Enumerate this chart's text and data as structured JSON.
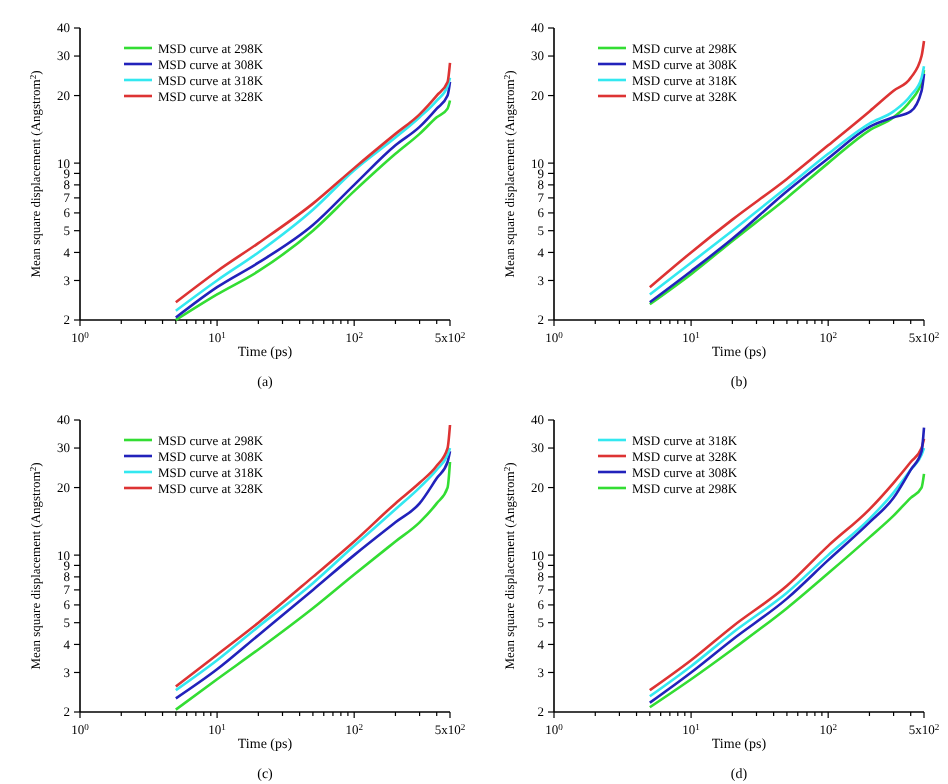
{
  "chart_data": [
    {
      "type": "line",
      "xlabel": "Time (ps)",
      "ylabel": "Mean square displacement (Angstrom$^{2}$)",
      "annotations": [
        "(a)"
      ],
      "log": "xy",
      "grid": false,
      "legend": "top left",
      "marker": "none",
      "line_style": "solid",
      "xlim": [
        1,
        500
      ],
      "ylim": [
        2,
        40
      ],
      "xticks": [
        {
          "value": 1,
          "label": "10$^{0}$"
        },
        {
          "value": 2,
          "label": null
        },
        {
          "value": 3,
          "label": null
        },
        {
          "value": 4,
          "label": null
        },
        {
          "value": 5,
          "label": null
        },
        {
          "value": 6,
          "label": null
        },
        {
          "value": 7,
          "label": null
        },
        {
          "value": 8,
          "label": null
        },
        {
          "value": 9,
          "label": null
        },
        {
          "value": 10,
          "label": "10$^{1}$"
        },
        {
          "value": 20,
          "label": null
        },
        {
          "value": 30,
          "label": null
        },
        {
          "value": 40,
          "label": null
        },
        {
          "value": 50,
          "label": null
        },
        {
          "value": 60,
          "label": null
        },
        {
          "value": 70,
          "label": null
        },
        {
          "value": 80,
          "label": null
        },
        {
          "value": 90,
          "label": null
        },
        {
          "value": 100,
          "label": "10$^{2}$"
        },
        {
          "value": 200,
          "label": null
        },
        {
          "value": 300,
          "label": null
        },
        {
          "value": 400,
          "label": null
        },
        {
          "value": 500,
          "label": "5x10$^{2}$"
        }
      ],
      "yticks": [
        2,
        3,
        4,
        5,
        6,
        7,
        8,
        9,
        10,
        20,
        30,
        40
      ],
      "x": [
        5,
        10,
        20,
        50,
        100,
        200,
        300,
        400,
        480,
        500
      ],
      "series": [
        {
          "name": "MSD curve at 298K",
          "color": "#33dd33",
          "values": [
            2.0,
            2.6,
            3.3,
            5.0,
            7.5,
            11,
            13.5,
            16,
            17.5,
            19
          ]
        },
        {
          "name": "MSD curve at 308K",
          "color": "#2222bb",
          "values": [
            2.05,
            2.8,
            3.6,
            5.3,
            8,
            12,
            14.5,
            17.5,
            20,
            23
          ]
        },
        {
          "name": "MSD curve at 318K",
          "color": "#33e8f0",
          "values": [
            2.2,
            3.0,
            4.0,
            6.2,
            9.3,
            13,
            16,
            19,
            22,
            24
          ]
        },
        {
          "name": "MSD curve at 328K",
          "color": "#dd3333",
          "values": [
            2.4,
            3.3,
            4.4,
            6.6,
            9.5,
            13.5,
            16.5,
            20,
            23,
            28
          ]
        }
      ]
    },
    {
      "type": "line",
      "xlabel": "Time (ps)",
      "ylabel": "Mean square displacement (Angstrom$^{2}$)",
      "annotations": [
        "(b)"
      ],
      "log": "xy",
      "grid": false,
      "legend": "top left",
      "marker": "none",
      "line_style": "solid",
      "xlim": [
        1,
        500
      ],
      "ylim": [
        2,
        40
      ],
      "xticks": [
        {
          "value": 1,
          "label": "10$^{0}$"
        },
        {
          "value": 2,
          "label": null
        },
        {
          "value": 3,
          "label": null
        },
        {
          "value": 4,
          "label": null
        },
        {
          "value": 5,
          "label": null
        },
        {
          "value": 6,
          "label": null
        },
        {
          "value": 7,
          "label": null
        },
        {
          "value": 8,
          "label": null
        },
        {
          "value": 9,
          "label": null
        },
        {
          "value": 10,
          "label": "10$^{1}$"
        },
        {
          "value": 20,
          "label": null
        },
        {
          "value": 30,
          "label": null
        },
        {
          "value": 40,
          "label": null
        },
        {
          "value": 50,
          "label": null
        },
        {
          "value": 60,
          "label": null
        },
        {
          "value": 70,
          "label": null
        },
        {
          "value": 80,
          "label": null
        },
        {
          "value": 90,
          "label": null
        },
        {
          "value": 100,
          "label": "10$^{2}$"
        },
        {
          "value": 200,
          "label": null
        },
        {
          "value": 300,
          "label": null
        },
        {
          "value": 400,
          "label": null
        },
        {
          "value": 500,
          "label": "5x10$^{2}$"
        }
      ],
      "yticks": [
        2,
        3,
        4,
        5,
        6,
        7,
        8,
        9,
        10,
        20,
        30,
        40
      ],
      "x": [
        5,
        10,
        20,
        50,
        100,
        200,
        300,
        400,
        480,
        500
      ],
      "series": [
        {
          "name": "MSD curve at 298K",
          "color": "#33dd33",
          "values": [
            2.35,
            3.2,
            4.5,
            7,
            10,
            14,
            16,
            19,
            23,
            26
          ]
        },
        {
          "name": "MSD curve at 308K",
          "color": "#2222bb",
          "values": [
            2.4,
            3.3,
            4.6,
            7.5,
            10.5,
            14.5,
            16,
            17,
            21,
            25
          ]
        },
        {
          "name": "MSD curve at 318K",
          "color": "#33e8f0",
          "values": [
            2.6,
            3.6,
            5,
            7.8,
            11,
            15,
            17,
            20,
            24,
            27
          ]
        },
        {
          "name": "MSD curve at 328K",
          "color": "#dd3333",
          "values": [
            2.8,
            4,
            5.6,
            8.5,
            12,
            17,
            21,
            24,
            30,
            35
          ]
        }
      ]
    },
    {
      "type": "line",
      "xlabel": "Time (ps)",
      "ylabel": "Mean square displacement (Angstrom$^{2}$)",
      "annotations": [
        "(c)"
      ],
      "log": "xy",
      "grid": false,
      "legend": "top left",
      "marker": "none",
      "line_style": "solid",
      "xlim": [
        1,
        500
      ],
      "ylim": [
        2,
        40
      ],
      "xticks": [
        {
          "value": 1,
          "label": "10$^{0}$"
        },
        {
          "value": 2,
          "label": null
        },
        {
          "value": 3,
          "label": null
        },
        {
          "value": 4,
          "label": null
        },
        {
          "value": 5,
          "label": null
        },
        {
          "value": 6,
          "label": null
        },
        {
          "value": 7,
          "label": null
        },
        {
          "value": 8,
          "label": null
        },
        {
          "value": 9,
          "label": null
        },
        {
          "value": 10,
          "label": "10$^{1}$"
        },
        {
          "value": 20,
          "label": null
        },
        {
          "value": 30,
          "label": null
        },
        {
          "value": 40,
          "label": null
        },
        {
          "value": 50,
          "label": null
        },
        {
          "value": 60,
          "label": null
        },
        {
          "value": 70,
          "label": null
        },
        {
          "value": 80,
          "label": null
        },
        {
          "value": 90,
          "label": null
        },
        {
          "value": 100,
          "label": "10$^{2}$"
        },
        {
          "value": 200,
          "label": null
        },
        {
          "value": 300,
          "label": null
        },
        {
          "value": 400,
          "label": null
        },
        {
          "value": 500,
          "label": "5x10$^{2}$"
        }
      ],
      "yticks": [
        2,
        3,
        4,
        5,
        6,
        7,
        8,
        9,
        10,
        20,
        30,
        40
      ],
      "x": [
        5,
        10,
        20,
        50,
        100,
        200,
        300,
        400,
        480,
        500
      ],
      "series": [
        {
          "name": "MSD curve at 298K",
          "color": "#33dd33",
          "values": [
            2.05,
            2.8,
            3.8,
            5.8,
            8.2,
            11.5,
            14,
            17,
            20,
            26
          ]
        },
        {
          "name": "MSD curve at 308K",
          "color": "#2222bb",
          "values": [
            2.3,
            3.1,
            4.4,
            7,
            10,
            14,
            17,
            22,
            26,
            29
          ]
        },
        {
          "name": "MSD curve at 318K",
          "color": "#33e8f0",
          "values": [
            2.5,
            3.4,
            4.8,
            7.5,
            11,
            16,
            20,
            24,
            28,
            30
          ]
        },
        {
          "name": "MSD curve at 328K",
          "color": "#dd3333",
          "values": [
            2.6,
            3.6,
            5,
            8,
            11.5,
            17,
            21,
            25,
            30,
            38
          ]
        }
      ]
    },
    {
      "type": "line",
      "xlabel": "Time (ps)",
      "ylabel": "Mean square displacement (Angstrom$^{2}$)",
      "annotations": [
        "(d)"
      ],
      "log": "xy",
      "grid": false,
      "legend": "top left",
      "marker": "none",
      "line_style": "solid",
      "xlim": [
        1,
        500
      ],
      "ylim": [
        2,
        40
      ],
      "xticks": [
        {
          "value": 1,
          "label": "10$^{0}$"
        },
        {
          "value": 2,
          "label": null
        },
        {
          "value": 3,
          "label": null
        },
        {
          "value": 4,
          "label": null
        },
        {
          "value": 5,
          "label": null
        },
        {
          "value": 6,
          "label": null
        },
        {
          "value": 7,
          "label": null
        },
        {
          "value": 8,
          "label": null
        },
        {
          "value": 9,
          "label": null
        },
        {
          "value": 10,
          "label": "10$^{1}$"
        },
        {
          "value": 20,
          "label": null
        },
        {
          "value": 30,
          "label": null
        },
        {
          "value": 40,
          "label": null
        },
        {
          "value": 50,
          "label": null
        },
        {
          "value": 60,
          "label": null
        },
        {
          "value": 70,
          "label": null
        },
        {
          "value": 80,
          "label": null
        },
        {
          "value": 90,
          "label": null
        },
        {
          "value": 100,
          "label": "10$^{2}$"
        },
        {
          "value": 200,
          "label": null
        },
        {
          "value": 300,
          "label": null
        },
        {
          "value": 400,
          "label": null
        },
        {
          "value": 500,
          "label": "5x10$^{2}$"
        }
      ],
      "yticks": [
        2,
        3,
        4,
        5,
        6,
        7,
        8,
        9,
        10,
        20,
        30,
        40
      ],
      "x": [
        5,
        10,
        20,
        50,
        100,
        200,
        300,
        400,
        480,
        500
      ],
      "series": [
        {
          "name": "MSD curve at 318K",
          "color": "#33e8f0",
          "values": [
            2.35,
            3.2,
            4.5,
            6.8,
            10,
            14.5,
            19,
            24,
            28,
            30
          ]
        },
        {
          "name": "MSD curve at 328K",
          "color": "#dd3333",
          "values": [
            2.5,
            3.4,
            4.8,
            7.3,
            11,
            16,
            21,
            26,
            30,
            33
          ]
        },
        {
          "name": "MSD curve at 308K",
          "color": "#2222bb",
          "values": [
            2.2,
            3.0,
            4.2,
            6.4,
            9.5,
            14,
            18,
            24,
            29,
            37
          ]
        },
        {
          "name": "MSD curve at 298K",
          "color": "#33dd33",
          "values": [
            2.1,
            2.8,
            3.8,
            5.8,
            8.3,
            12,
            15,
            18,
            20,
            23
          ]
        }
      ]
    }
  ]
}
